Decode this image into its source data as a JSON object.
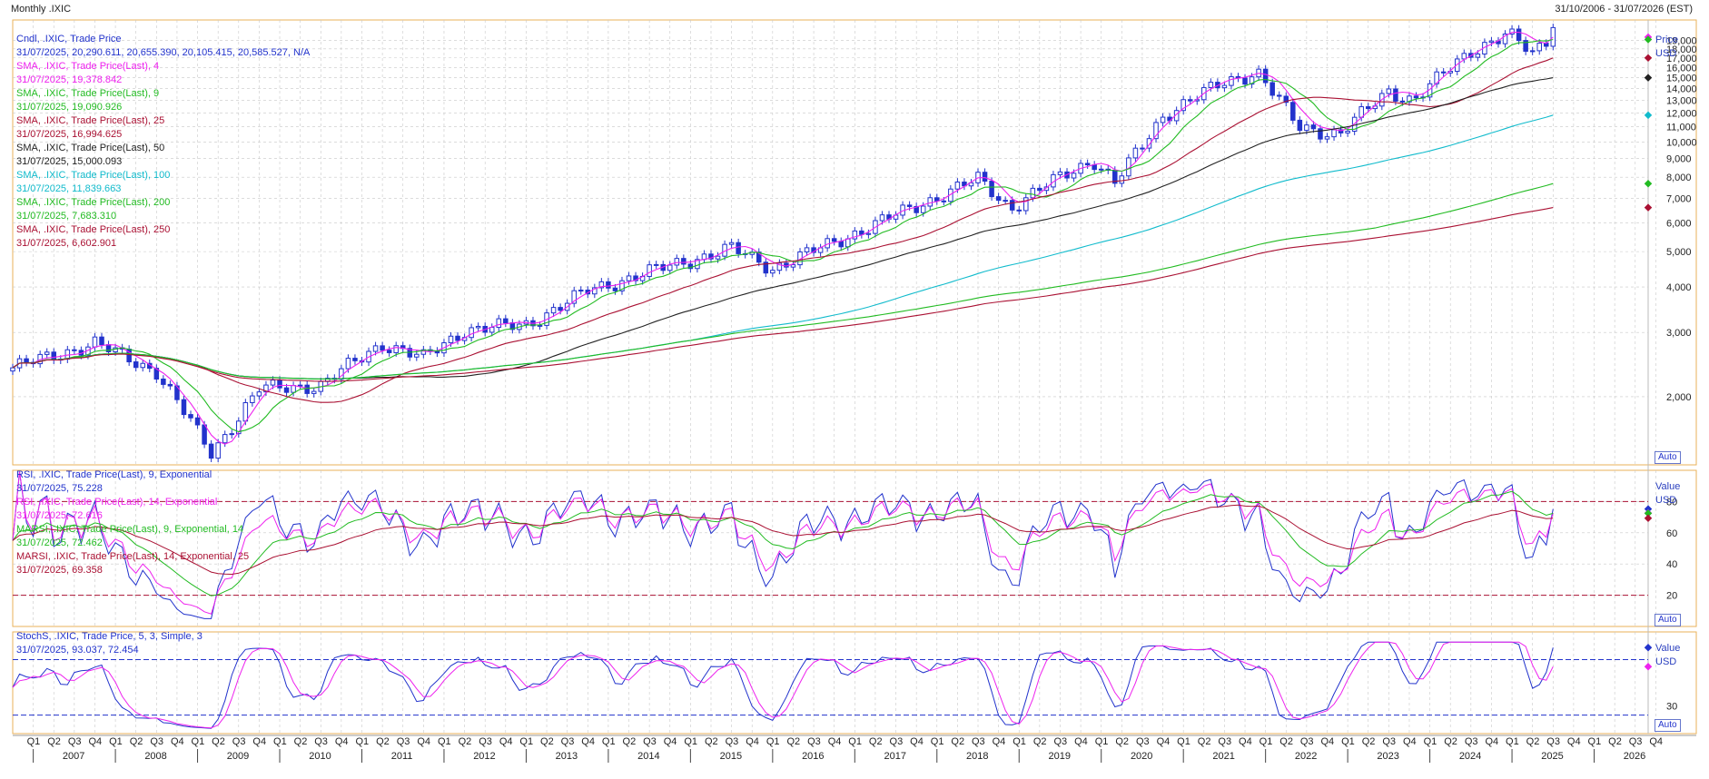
{
  "header": {
    "left": "Monthly .IXIC",
    "right": "31/10/2006 - 31/07/2026 (EST)"
  },
  "price_panel": {
    "unit_label_1": "Price",
    "unit_label_2": "USD",
    "auto_label": "Auto",
    "legend": [
      {
        "text": "Cndl, .IXIC, Trade Price",
        "color": "#2233cc"
      },
      {
        "text": "31/07/2025, 20,290.611, 20,655.390, 20,105.415, 20,585.527, N/A",
        "color": "#2233cc"
      },
      {
        "text": "SMA, .IXIC, Trade Price(Last), 4",
        "color": "#ee22ee"
      },
      {
        "text": "31/07/2025, 19,378.842",
        "color": "#ee22ee"
      },
      {
        "text": "SMA, .IXIC, Trade Price(Last), 9",
        "color": "#22bb22"
      },
      {
        "text": "31/07/2025, 19,090.926",
        "color": "#22bb22"
      },
      {
        "text": "SMA, .IXIC, Trade Price(Last), 25",
        "color": "#aa1133"
      },
      {
        "text": "31/07/2025, 16,994.625",
        "color": "#aa1133"
      },
      {
        "text": "SMA, .IXIC, Trade Price(Last), 50",
        "color": "#222222"
      },
      {
        "text": "31/07/2025, 15,000.093",
        "color": "#222222"
      },
      {
        "text": "SMA, .IXIC, Trade Price(Last), 100",
        "color": "#11bbcc"
      },
      {
        "text": "31/07/2025, 11,839.663",
        "color": "#11bbcc"
      },
      {
        "text": "SMA, .IXIC, Trade Price(Last), 200",
        "color": "#22bb22"
      },
      {
        "text": "31/07/2025, 7,683.310",
        "color": "#22bb22"
      },
      {
        "text": "SMA, .IXIC, Trade Price(Last), 250",
        "color": "#aa1133"
      },
      {
        "text": "31/07/2025, 6,602.901",
        "color": "#aa1133"
      }
    ]
  },
  "rsi_panel": {
    "unit_label_1": "Value",
    "unit_label_2": "USD",
    "auto_label": "Auto",
    "legend": [
      {
        "text": "RSI, .IXIC, Trade Price(Last), 9, Exponential",
        "color": "#2233cc"
      },
      {
        "text": "31/07/2025, 75.228",
        "color": "#2233cc"
      },
      {
        "text": "RSI, .IXIC, Trade Price(Last), 14, Exponential",
        "color": "#ee22ee"
      },
      {
        "text": "31/07/2025, 72.616",
        "color": "#ee22ee"
      },
      {
        "text": "MARSI, .IXIC, Trade Price(Last), 9, Exponential, 14",
        "color": "#22bb22"
      },
      {
        "text": "31/07/2025, 72.462",
        "color": "#22bb22"
      },
      {
        "text": "MARSI, .IXIC, Trade Price(Last), 14, Exponential, 25",
        "color": "#aa1133"
      },
      {
        "text": "31/07/2025, 69.358",
        "color": "#aa1133"
      }
    ]
  },
  "stoch_panel": {
    "unit_label_1": "Value",
    "unit_label_2": "USD",
    "auto_label": "Auto",
    "legend": [
      {
        "text": "StochS, .IXIC, Trade Price, 5, 3, Simple, 3",
        "color": "#2233cc"
      },
      {
        "text": "31/07/2025, 93.037, 72.454",
        "color": "#2233cc"
      }
    ]
  },
  "chart_data": [
    {
      "type": "candlestick",
      "title": "Monthly .IXIC",
      "period": "31/10/2006 - 31/07/2026 (EST)",
      "ylim": [
        1300,
        21600
      ],
      "ticks": [
        2000,
        3000,
        4000,
        5000,
        6000,
        7000,
        8000,
        9000,
        10000,
        11000,
        12000,
        13000,
        14000,
        15000,
        16000,
        17000,
        18000,
        19000
      ],
      "x_anchors": [
        {
          "x": 2006.75,
          "close": 2400
        },
        {
          "x": 2007.75,
          "close": 2800
        },
        {
          "x": 2008.5,
          "close": 2350
        },
        {
          "x": 2009.17,
          "close": 1400
        },
        {
          "x": 2009.75,
          "close": 2100
        },
        {
          "x": 2010.5,
          "close": 2150
        },
        {
          "x": 2011.25,
          "close": 2800
        },
        {
          "x": 2011.75,
          "close": 2550
        },
        {
          "x": 2012.25,
          "close": 3050
        },
        {
          "x": 2013.0,
          "close": 3150
        },
        {
          "x": 2013.75,
          "close": 3900
        },
        {
          "x": 2014.5,
          "close": 4400
        },
        {
          "x": 2015.5,
          "close": 5100
        },
        {
          "x": 2016.0,
          "close": 4500
        },
        {
          "x": 2016.75,
          "close": 5300
        },
        {
          "x": 2017.5,
          "close": 6300
        },
        {
          "x": 2018.5,
          "close": 7900
        },
        {
          "x": 2018.9,
          "close": 6600
        },
        {
          "x": 2019.5,
          "close": 8000
        },
        {
          "x": 2019.9,
          "close": 8950
        },
        {
          "x": 2020.17,
          "close": 7700
        },
        {
          "x": 2020.75,
          "close": 11800
        },
        {
          "x": 2021.5,
          "close": 14600
        },
        {
          "x": 2021.9,
          "close": 15600
        },
        {
          "x": 2022.4,
          "close": 11000
        },
        {
          "x": 2022.9,
          "close": 10500
        },
        {
          "x": 2023.5,
          "close": 13800
        },
        {
          "x": 2023.8,
          "close": 13000
        },
        {
          "x": 2024.5,
          "close": 17800
        },
        {
          "x": 2024.95,
          "close": 19800
        },
        {
          "x": 2025.25,
          "close": 17400
        },
        {
          "x": 2025.58,
          "close": 20585.527
        }
      ],
      "last_values": {
        "open": 20290.611,
        "high": 20655.39,
        "low": 20105.415,
        "close": 20585.527,
        "SMA4": 19378.842,
        "SMA9": 19090.926,
        "SMA25": 16994.625,
        "SMA50": 15000.093,
        "SMA100": 11839.663,
        "SMA200": 7683.31,
        "SMA250": 6602.901
      }
    },
    {
      "type": "line",
      "title": "RSI",
      "ylim": [
        0,
        100
      ],
      "ticks": [
        20,
        40,
        60,
        80
      ],
      "ref_lines": [
        80,
        20
      ],
      "last_values": {
        "RSI9": 75.228,
        "RSI14": 72.616,
        "MARSI9_14": 72.462,
        "MARSI14_25": 69.358
      }
    },
    {
      "type": "line",
      "title": "StochS",
      "ylim": [
        0,
        110
      ],
      "ticks": [
        30
      ],
      "ref_lines": [
        80,
        20
      ],
      "last_values": {
        "K": 93.037,
        "D": 72.454
      }
    }
  ],
  "x_axis": {
    "quarters": [
      "Q1",
      "Q2",
      "Q3",
      "Q4"
    ],
    "first_year": 2007,
    "last_year": 2026,
    "years": [
      "2007",
      "2008",
      "2009",
      "2010",
      "2011",
      "2012",
      "2013",
      "2014",
      "2015",
      "2016",
      "2017",
      "2018",
      "2019",
      "2020",
      "2021",
      "2022",
      "2023",
      "2024",
      "2025",
      "2026"
    ]
  },
  "colors": {
    "candle": "#2233cc",
    "sma4": "#ee22ee",
    "sma9": "#22bb22",
    "sma25": "#aa1133",
    "sma50": "#222222",
    "sma100": "#11bbcc",
    "sma200": "#22bb22",
    "sma250": "#aa1133",
    "grid": "#c8c8c8",
    "ref": "#aa1133",
    "stoch_ref": "#2233cc"
  }
}
